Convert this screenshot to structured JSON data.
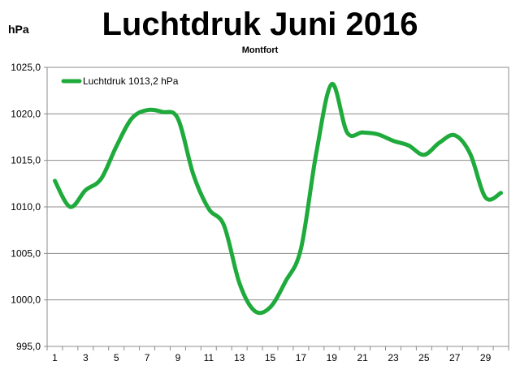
{
  "chart_data": {
    "type": "line",
    "title": "Luchtdruk Juni 2016",
    "subtitle": "Montfort",
    "ylabel": "hPa",
    "xlabel": "",
    "ylim": [
      995,
      1025
    ],
    "yticks": [
      "995,0",
      "1000,0",
      "1005,0",
      "1010,0",
      "1015,0",
      "1020,0",
      "1025,0"
    ],
    "xlim": [
      1,
      30
    ],
    "xticks": [
      "1",
      "3",
      "5",
      "7",
      "9",
      "11",
      "13",
      "15",
      "17",
      "19",
      "21",
      "23",
      "25",
      "27",
      "29"
    ],
    "grid": "horizontal",
    "legend_position": "top-left",
    "series": [
      {
        "name": "Luchtdruk 1013,2 hPa",
        "color": "#1faa3c",
        "x": [
          1,
          2,
          3,
          4,
          5,
          6,
          7,
          8,
          9,
          10,
          11,
          12,
          13,
          14,
          15,
          16,
          17,
          18,
          19,
          20,
          21,
          22,
          23,
          24,
          25,
          26,
          27,
          28,
          29,
          30
        ],
        "y": [
          1012.8,
          1010.0,
          1011.8,
          1013.0,
          1016.5,
          1019.5,
          1020.4,
          1020.2,
          1019.5,
          1013.5,
          1009.8,
          1008.0,
          1001.8,
          998.8,
          999.2,
          1002.0,
          1005.5,
          1015.8,
          1023.2,
          1018.0,
          1018.0,
          1017.8,
          1017.1,
          1016.6,
          1015.6,
          1016.9,
          1017.7,
          1015.7,
          1011.0,
          1011.5
        ]
      }
    ]
  }
}
